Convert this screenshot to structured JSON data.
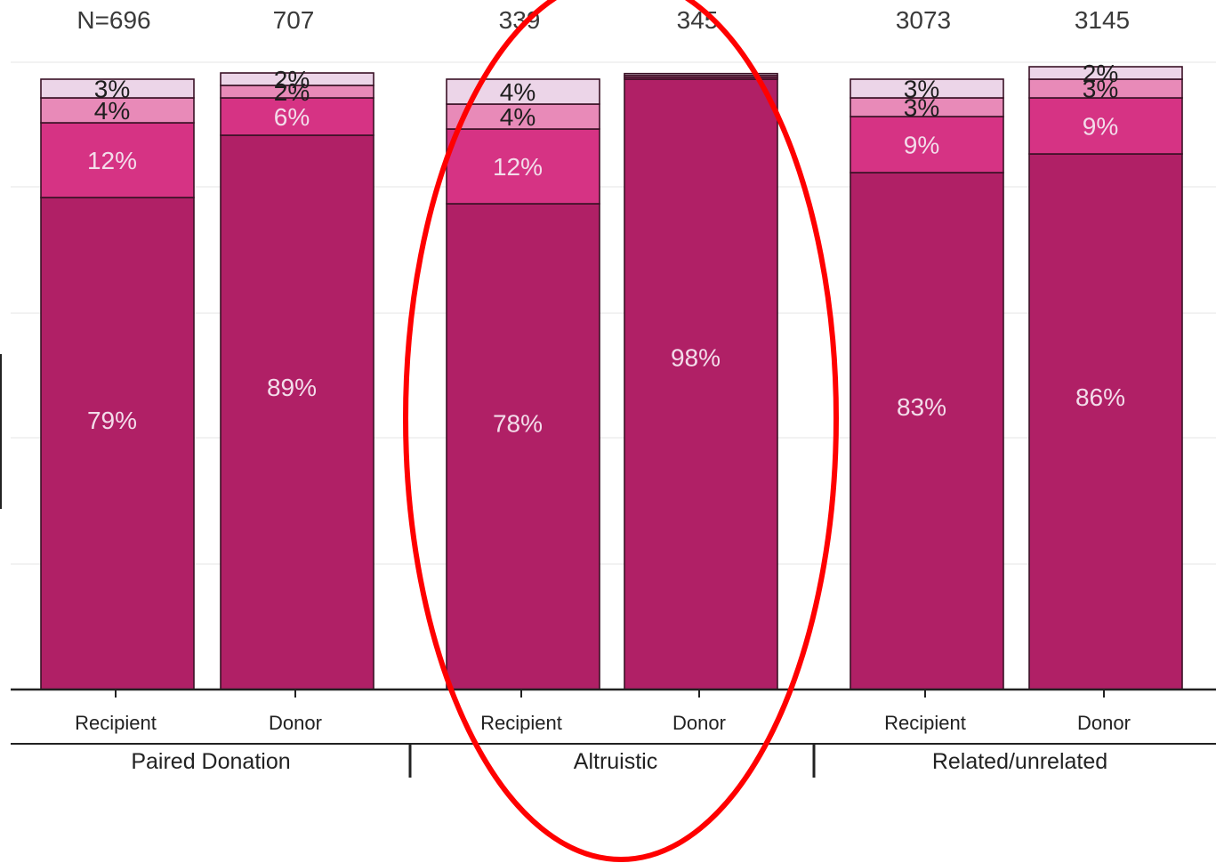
{
  "chart_data": {
    "type": "bar",
    "stacked": true,
    "percent_scale": true,
    "groups": [
      {
        "label": "Paired Donation",
        "columns": [
          0,
          1
        ]
      },
      {
        "label": "Altruistic",
        "columns": [
          2,
          3
        ]
      },
      {
        "label": "Related/unrelated",
        "columns": [
          4,
          5
        ]
      }
    ],
    "columns": [
      {
        "category": "Recipient",
        "group": "Paired Donation",
        "n_label": "N=696",
        "segments": [
          {
            "value": 79,
            "label": "79%"
          },
          {
            "value": 12,
            "label": "12%"
          },
          {
            "value": 4,
            "label": "4%"
          },
          {
            "value": 3,
            "label": "3%"
          }
        ]
      },
      {
        "category": "Donor",
        "group": "Paired Donation",
        "n_label": "707",
        "segments": [
          {
            "value": 89,
            "label": "89%"
          },
          {
            "value": 6,
            "label": "6%"
          },
          {
            "value": 2,
            "label": "2%"
          },
          {
            "value": 2,
            "label": "2%"
          }
        ]
      },
      {
        "category": "Recipient",
        "group": "Altruistic",
        "n_label": "339",
        "segments": [
          {
            "value": 78,
            "label": "78%"
          },
          {
            "value": 12,
            "label": "12%"
          },
          {
            "value": 4,
            "label": "4%"
          },
          {
            "value": 4,
            "label": "4%"
          }
        ]
      },
      {
        "category": "Donor",
        "group": "Altruistic",
        "n_label": "345",
        "segments": [
          {
            "value": 98,
            "label": "98%"
          },
          {
            "value": 0.3,
            "label": ""
          },
          {
            "value": 0.3,
            "label": ""
          },
          {
            "value": 0.3,
            "label": ""
          }
        ]
      },
      {
        "category": "Recipient",
        "group": "Related/unrelated",
        "n_label": "3073",
        "segments": [
          {
            "value": 83,
            "label": "83%"
          },
          {
            "value": 9,
            "label": "9%"
          },
          {
            "value": 3,
            "label": "3%"
          },
          {
            "value": 3,
            "label": "3%"
          }
        ]
      },
      {
        "category": "Donor",
        "group": "Related/unrelated",
        "n_label": "3145",
        "segments": [
          {
            "value": 86,
            "label": "86%"
          },
          {
            "value": 9,
            "label": "9%"
          },
          {
            "value": 3,
            "label": "3%"
          },
          {
            "value": 2,
            "label": "2%"
          }
        ]
      }
    ],
    "segment_colors": [
      "#b02066",
      "#d63384",
      "#e88ab8",
      "#ecd5e8"
    ],
    "segment_label_colors": [
      "#f3dcea",
      "#f3dcea",
      "#1e1e1e",
      "#1e1e1e"
    ],
    "annotation": {
      "shape": "ellipse",
      "color": "#ff0000",
      "highlights_group": "Altruistic"
    },
    "grid": true,
    "legend": "none"
  }
}
